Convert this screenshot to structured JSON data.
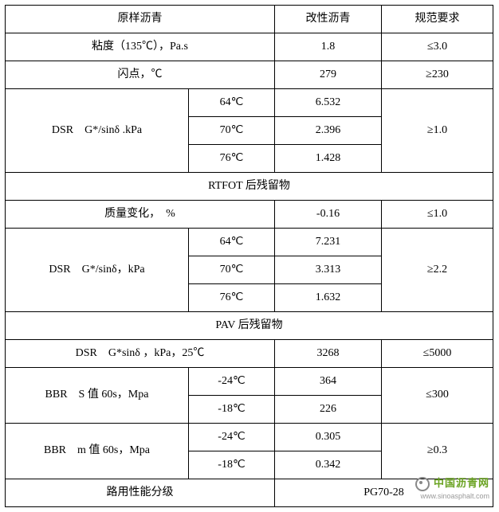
{
  "header": {
    "col1": "原样沥青",
    "col3": "改性沥青",
    "col4": "规范要求"
  },
  "rows": {
    "viscosity": {
      "label": "粘度（135℃），Pa.s",
      "val": "1.8",
      "req": "≤3.0"
    },
    "flash": {
      "label": "闪点，℃",
      "val": "279",
      "req": "≥230"
    },
    "dsr1": {
      "label": "DSR　G*/sinδ .kPa",
      "t1": "64℃",
      "v1": "6.532",
      "t2": "70℃",
      "v2": "2.396",
      "t3": "76℃",
      "v3": "1.428",
      "req": "≥1.0"
    },
    "section_rtfot": "RTFOT 后残留物",
    "mass": {
      "label": "质量变化，　%",
      "val": "-0.16",
      "req": "≤1.0"
    },
    "dsr2": {
      "label": "DSR　G*/sinδ，kPa",
      "t1": "64℃",
      "v1": "7.231",
      "t2": "70℃",
      "v2": "3.313",
      "t3": "76℃",
      "v3": "1.632",
      "req": "≥2.2"
    },
    "section_pav": "PAV 后残留物",
    "dsr3": {
      "label": "DSR　G*sinδ ，kPa，25℃",
      "val": "3268",
      "req": "≤5000"
    },
    "bbr_s": {
      "label": "BBR　S 值 60s，Mpa",
      "t1": "-24℃",
      "v1": "364",
      "t2": "-18℃",
      "v2": "226",
      "req": "≤300"
    },
    "bbr_m": {
      "label": "BBR　m 值 60s，Mpa",
      "t1": "-24℃",
      "v1": "0.305",
      "t2": "-18℃",
      "v2": "0.342",
      "req": "≥0.3"
    },
    "grade": {
      "label": "路用性能分级",
      "val": "PG70-28"
    }
  },
  "watermark": {
    "cn": "中国沥青网",
    "url": "www.sinoasphalt.com"
  }
}
